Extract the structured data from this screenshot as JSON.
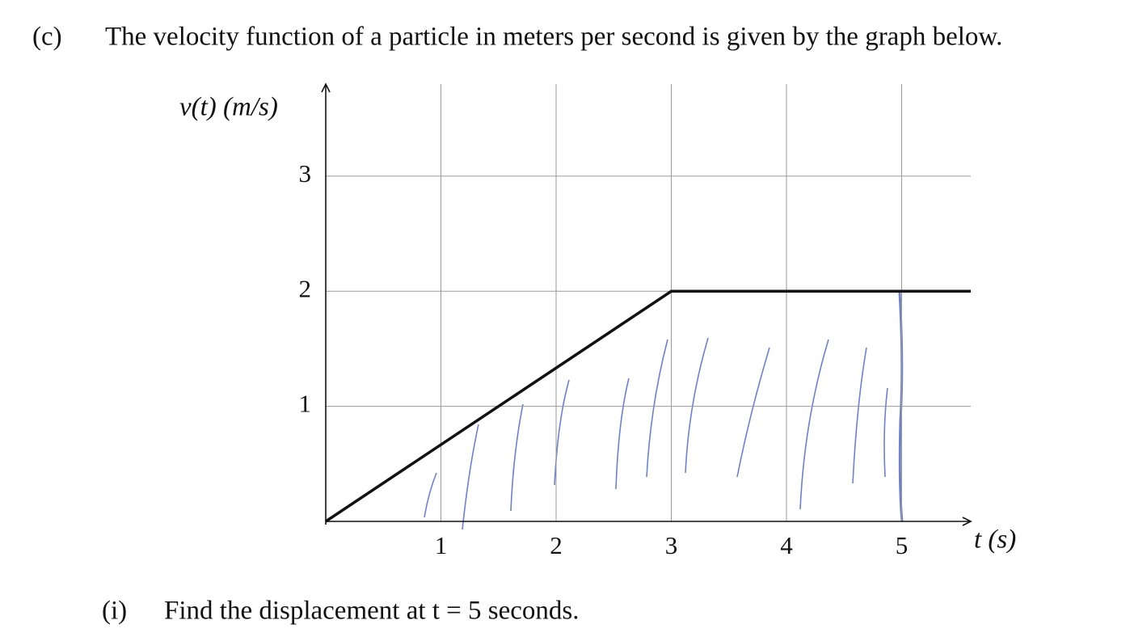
{
  "part_label": "(c)",
  "prompt": "The velocity function of a particle in meters per second is given by the graph below.",
  "chart_data": {
    "type": "line",
    "y_label": "v(t) (m/s)",
    "x_label": "t (s)",
    "x": [
      0,
      3,
      5.6
    ],
    "values": [
      0,
      2,
      2
    ],
    "color": "#111111",
    "xlim": [
      0,
      5.6
    ],
    "ylim": [
      0,
      3.8
    ],
    "xticks": [
      1,
      2,
      3,
      4,
      5
    ],
    "yticks": [
      1,
      2,
      3
    ],
    "grid": true
  },
  "subquestion": {
    "label": "(i)",
    "text": "Find the displacement at t = 5 seconds."
  }
}
